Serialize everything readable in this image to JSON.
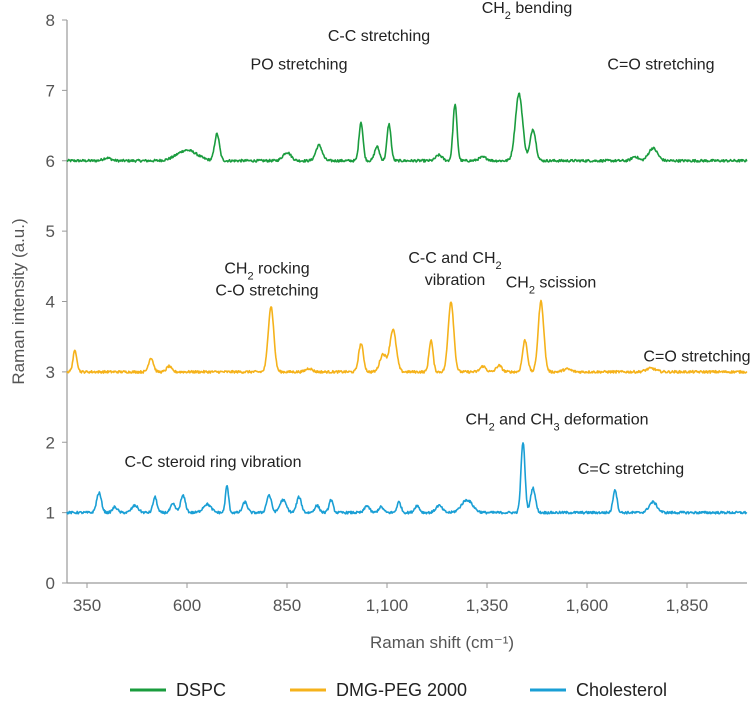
{
  "chart_data": {
    "type": "line",
    "title": "",
    "xlabel": "Raman shift (cm⁻¹)",
    "ylabel": "Raman intensity (a.u.)",
    "xlim": [
      300,
      2000
    ],
    "ylim": [
      0,
      8
    ],
    "x_ticks": [
      350,
      600,
      850,
      1100,
      1350,
      1600,
      1850
    ],
    "x_tick_labels": [
      "350",
      "600",
      "850",
      "1,100",
      "1,350",
      "1,600",
      "1,850"
    ],
    "y_ticks": [
      0,
      1,
      2,
      3,
      4,
      5,
      6,
      7,
      8
    ],
    "y_tick_labels": [
      "0",
      "1",
      "2",
      "3",
      "4",
      "5",
      "6",
      "7",
      "8"
    ],
    "grid": false,
    "legend_position": "bottom",
    "series": [
      {
        "name": "DSPC",
        "color": "#1a9c3e",
        "baseline": 6.0,
        "peaks": [
          [
            400,
            0.04,
            10
          ],
          [
            600,
            0.15,
            25
          ],
          [
            675,
            0.38,
            6
          ],
          [
            850,
            0.12,
            10
          ],
          [
            930,
            0.22,
            8
          ],
          [
            1035,
            0.55,
            5
          ],
          [
            1075,
            0.2,
            6
          ],
          [
            1105,
            0.52,
            5
          ],
          [
            1230,
            0.08,
            8
          ],
          [
            1270,
            0.8,
            5
          ],
          [
            1340,
            0.05,
            10
          ],
          [
            1430,
            0.95,
            9
          ],
          [
            1465,
            0.45,
            7
          ],
          [
            1720,
            0.06,
            8
          ],
          [
            1765,
            0.18,
            11
          ]
        ]
      },
      {
        "name": "DMG-PEG 2000",
        "color": "#f5b21b",
        "baseline": 3.0,
        "peaks": [
          [
            320,
            0.3,
            5
          ],
          [
            510,
            0.2,
            6
          ],
          [
            555,
            0.08,
            6
          ],
          [
            810,
            0.93,
            7
          ],
          [
            905,
            0.05,
            8
          ],
          [
            1035,
            0.4,
            6
          ],
          [
            1090,
            0.25,
            8
          ],
          [
            1115,
            0.6,
            8
          ],
          [
            1210,
            0.45,
            5
          ],
          [
            1260,
            1.0,
            7
          ],
          [
            1340,
            0.08,
            7
          ],
          [
            1380,
            0.09,
            7
          ],
          [
            1445,
            0.45,
            6
          ],
          [
            1485,
            1.0,
            7
          ],
          [
            1550,
            0.04,
            10
          ],
          [
            1760,
            0.05,
            12
          ]
        ]
      },
      {
        "name": "Cholesterol",
        "color": "#1a9fd5",
        "baseline": 1.0,
        "peaks": [
          [
            380,
            0.28,
            6
          ],
          [
            420,
            0.08,
            6
          ],
          [
            470,
            0.1,
            8
          ],
          [
            520,
            0.22,
            5
          ],
          [
            565,
            0.12,
            6
          ],
          [
            590,
            0.24,
            6
          ],
          [
            650,
            0.12,
            10
          ],
          [
            700,
            0.38,
            4
          ],
          [
            745,
            0.15,
            6
          ],
          [
            805,
            0.25,
            6
          ],
          [
            840,
            0.18,
            8
          ],
          [
            880,
            0.22,
            6
          ],
          [
            925,
            0.1,
            6
          ],
          [
            960,
            0.18,
            5
          ],
          [
            1050,
            0.1,
            6
          ],
          [
            1085,
            0.08,
            6
          ],
          [
            1130,
            0.15,
            5
          ],
          [
            1175,
            0.1,
            6
          ],
          [
            1230,
            0.1,
            8
          ],
          [
            1300,
            0.18,
            14
          ],
          [
            1440,
            1.0,
            5
          ],
          [
            1465,
            0.35,
            6
          ],
          [
            1670,
            0.33,
            5
          ],
          [
            1765,
            0.15,
            10
          ]
        ]
      }
    ],
    "annotations": [
      {
        "series": "DSPC",
        "lines": [
          "C-C stretching"
        ],
        "x": 1080,
        "y": 7.7
      },
      {
        "series": "DSPC",
        "lines": [
          "PO stretching"
        ],
        "x": 880,
        "y": 7.3
      },
      {
        "series": "DSPC",
        "lines": [
          "CH|2| bending"
        ],
        "x": 1450,
        "y": 8.1
      },
      {
        "series": "DSPC",
        "lines": [
          "C=O stretching"
        ],
        "x": 1785,
        "y": 7.3
      },
      {
        "series": "DMG-PEG 2000",
        "lines": [
          "CH|2| rocking",
          "C-O stretching"
        ],
        "x": 800,
        "y": 4.4
      },
      {
        "series": "DMG-PEG 2000",
        "lines": [
          "C-C and CH|2|",
          "vibration"
        ],
        "x": 1270,
        "y": 4.55
      },
      {
        "series": "DMG-PEG 2000",
        "lines": [
          "CH|2| scission"
        ],
        "x": 1510,
        "y": 4.2
      },
      {
        "series": "DMG-PEG 2000",
        "lines": [
          "C=O stretching"
        ],
        "x": 1875,
        "y": 3.15
      },
      {
        "series": "Cholesterol",
        "lines": [
          "C-C steroid ring vibration"
        ],
        "x": 665,
        "y": 1.65
      },
      {
        "series": "Cholesterol",
        "lines": [
          "CH|2| and CH|3| deformation"
        ],
        "x": 1525,
        "y": 2.25
      },
      {
        "series": "Cholesterol",
        "lines": [
          "C=C stretching"
        ],
        "x": 1710,
        "y": 1.55
      }
    ]
  }
}
